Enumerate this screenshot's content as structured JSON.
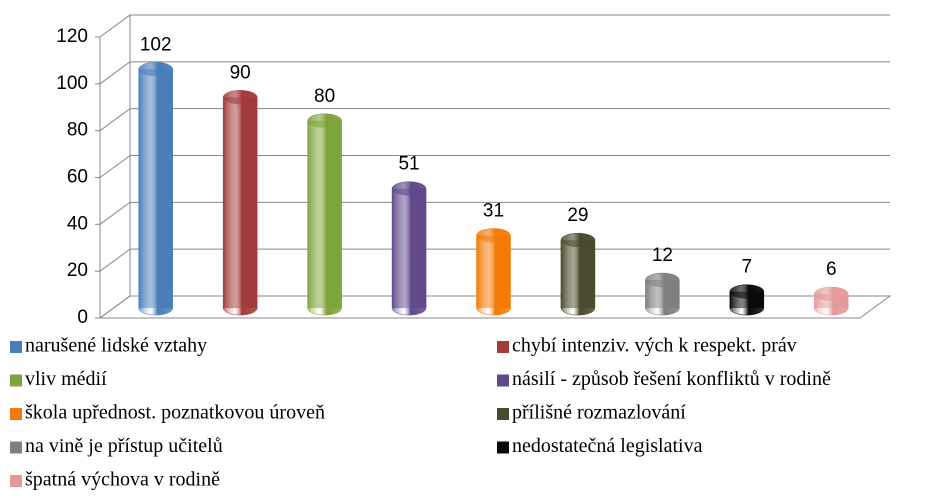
{
  "chart_data": {
    "type": "bar",
    "categories": [
      "narušené lidské vztahy",
      "chybí intenziv. vých k respekt. práv",
      "vliv médií",
      "násilí - způsob řešení konfliktů v rodině",
      "škola upřednost. poznatkovou úroveň",
      "přílišné rozmazlování",
      "na vině je přístup učitelů",
      "nedostatečná legislativa",
      "špatná výchova v rodině"
    ],
    "values": [
      102,
      90,
      80,
      51,
      31,
      29,
      12,
      7,
      6
    ],
    "colors": [
      "#4a7ebb",
      "#a33b3b",
      "#7ea43a",
      "#604a8c",
      "#f47a05",
      "#4a4a2c",
      "#7f7f7f",
      "#0a0a0a",
      "#e59a9a"
    ],
    "ylim": [
      0,
      120
    ],
    "yticks": [
      0,
      20,
      40,
      60,
      80,
      100,
      120
    ],
    "grid": true,
    "legend": "bottom"
  }
}
